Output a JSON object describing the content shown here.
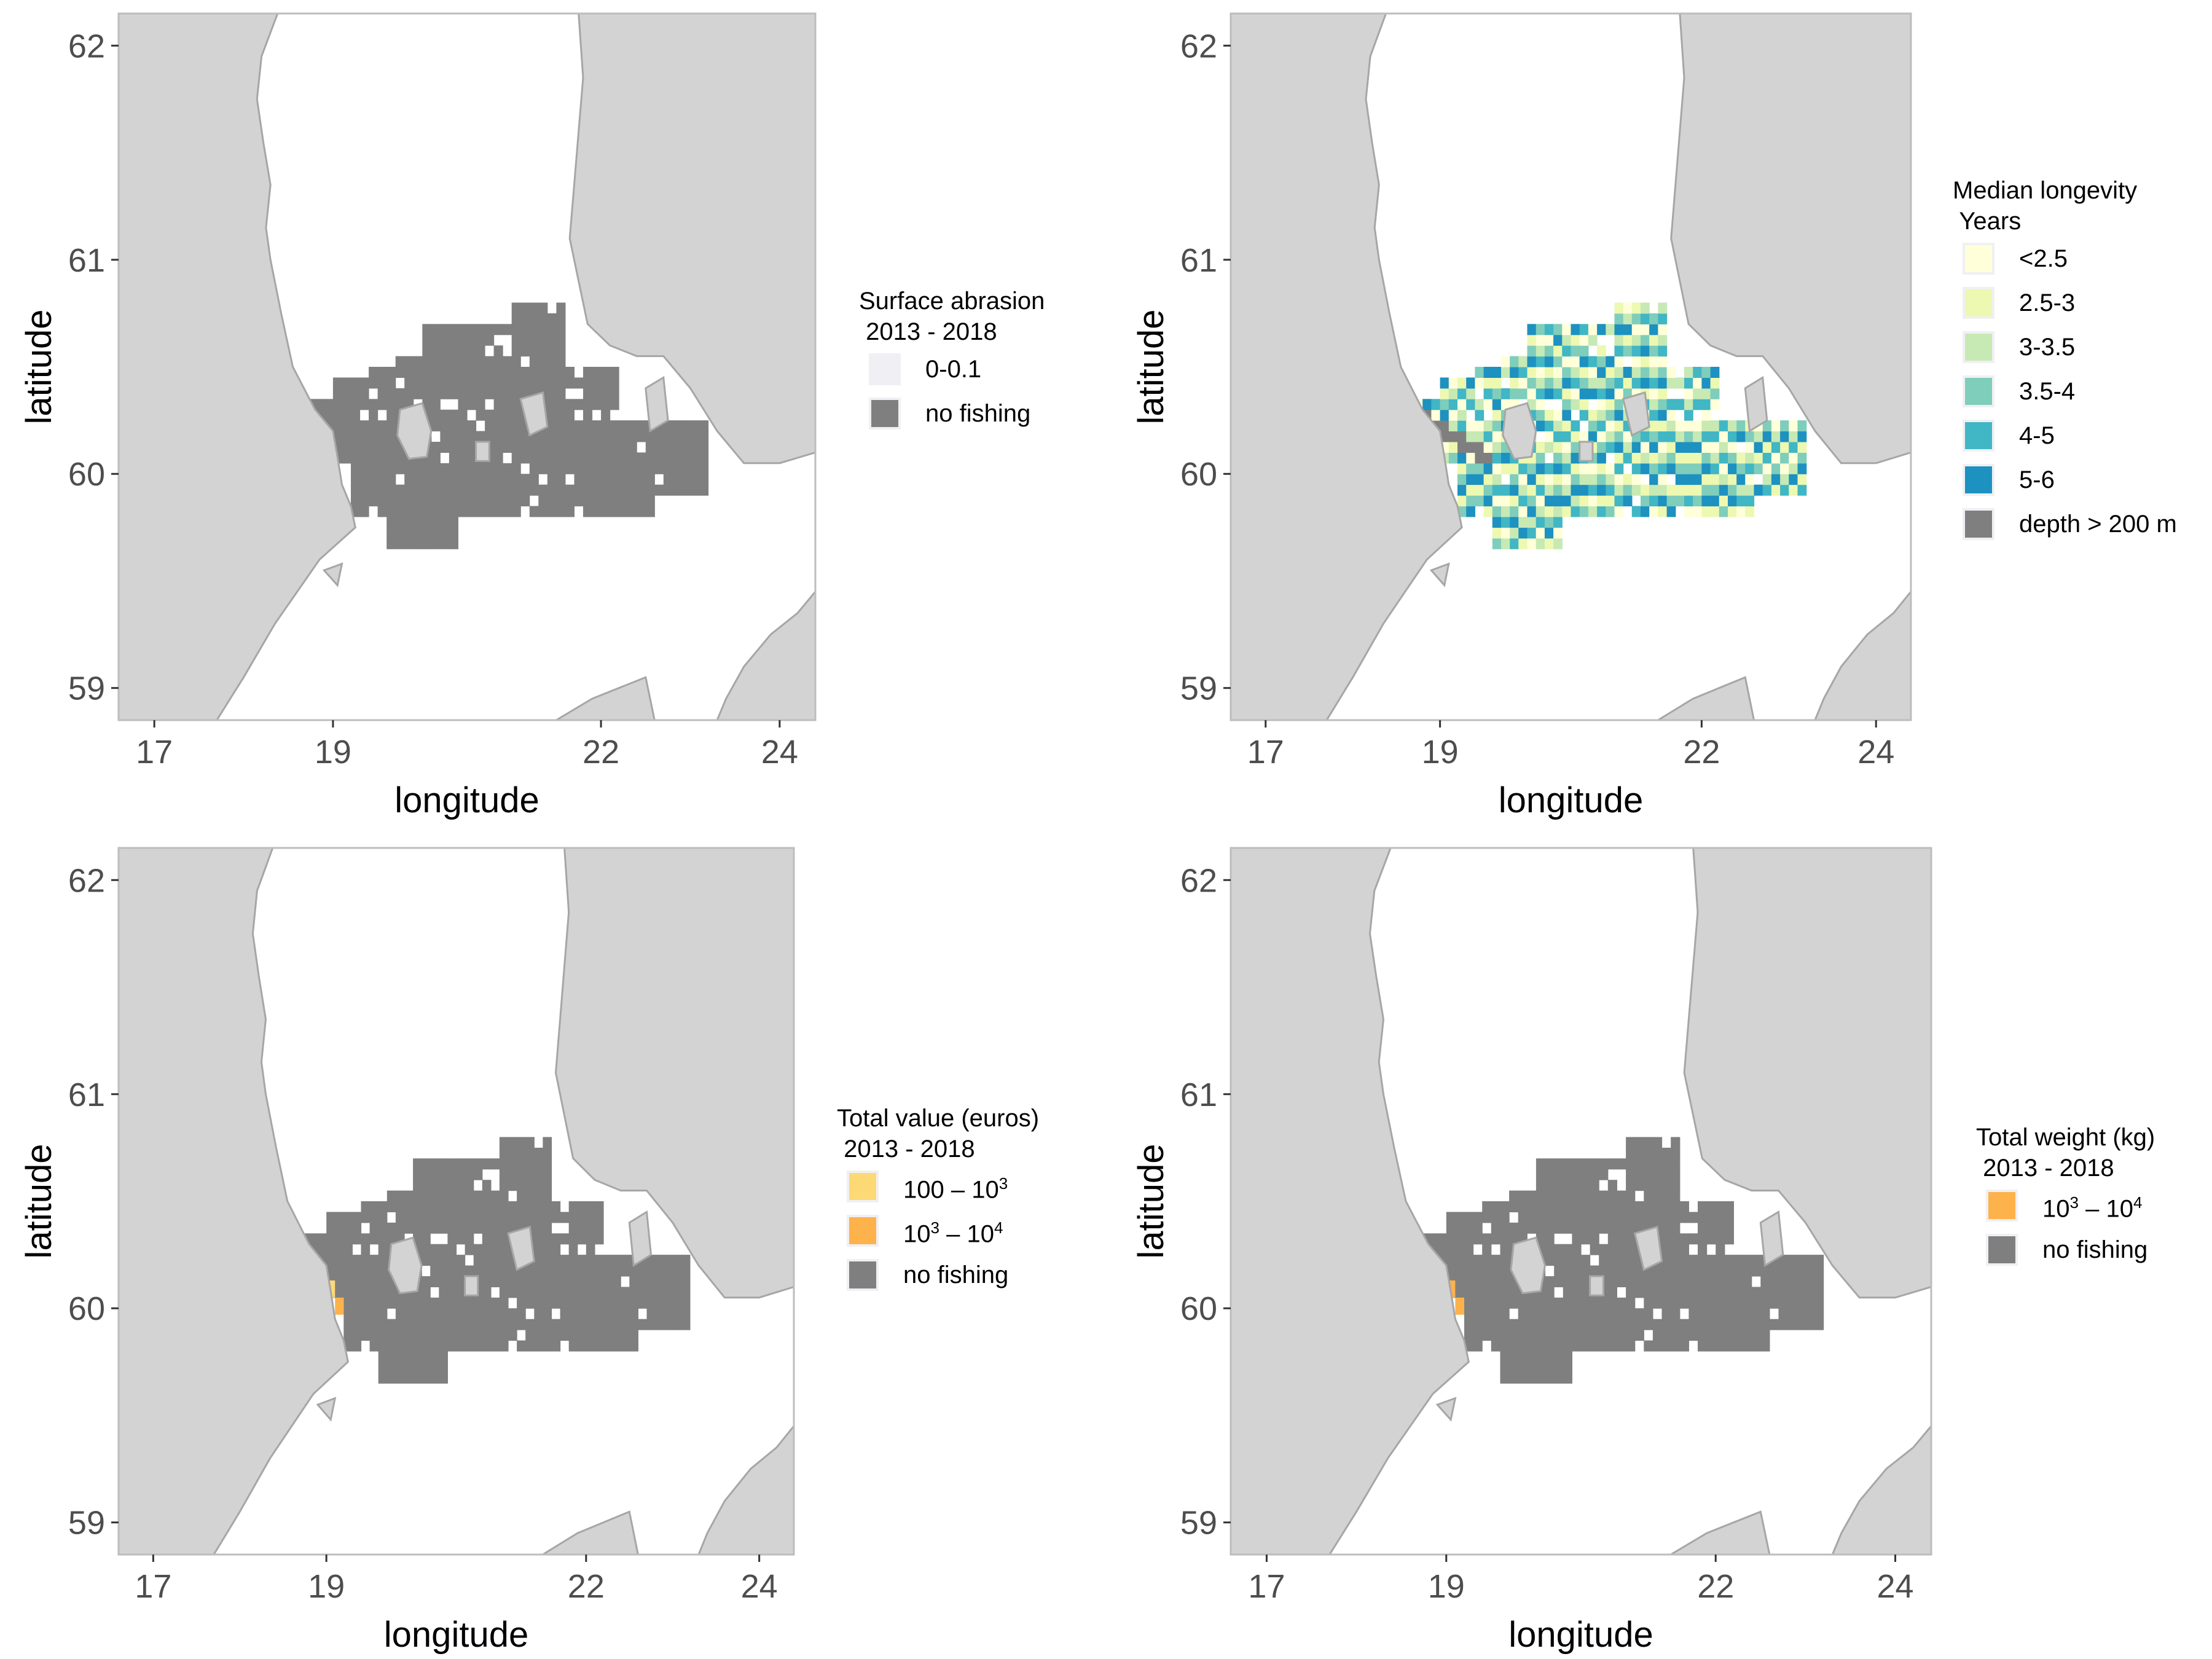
{
  "chart_data": [
    {
      "type": "heatmap",
      "subject": "map",
      "xlabel": "longitude",
      "ylabel": "latitude",
      "xlim": [
        16.6,
        24.4
      ],
      "ylim": [
        58.85,
        62.15
      ],
      "xticks": [
        "17",
        "19",
        "22",
        "24"
      ],
      "yticks": [
        "59",
        "60",
        "61",
        "62"
      ],
      "legend": {
        "title": "Surface abrasion\n 2013 - 2018",
        "entries": [
          {
            "label": "0-0.1",
            "color": "#f0f0f4"
          },
          {
            "label": "no fishing",
            "color": "#7f7f7f"
          }
        ]
      },
      "fill": "no fishing"
    },
    {
      "type": "heatmap",
      "subject": "map",
      "xlabel": "longitude",
      "ylabel": "latitude",
      "xlim": [
        16.6,
        24.4
      ],
      "ylim": [
        58.85,
        62.15
      ],
      "xticks": [
        "17",
        "19",
        "22",
        "24"
      ],
      "yticks": [
        "59",
        "60",
        "61",
        "62"
      ],
      "legend": {
        "title": "Median longevity\n Years",
        "entries": [
          {
            "label": "<2.5",
            "color": "#ffffd9"
          },
          {
            "label": "2.5-3",
            "color": "#edf8b1"
          },
          {
            "label": "3-3.5",
            "color": "#c7e9b4"
          },
          {
            "label": "3.5-4",
            "color": "#7fcdbb"
          },
          {
            "label": "4-5",
            "color": "#41b6c4"
          },
          {
            "label": "5-6",
            "color": "#1d91c0"
          },
          {
            "label": "depth > 200 m",
            "color": "#7f7f7f"
          }
        ]
      },
      "fill": "longevity"
    },
    {
      "type": "heatmap",
      "subject": "map",
      "xlabel": "longitude",
      "ylabel": "latitude",
      "xlim": [
        16.6,
        24.4
      ],
      "ylim": [
        58.85,
        62.15
      ],
      "xticks": [
        "17",
        "19",
        "22",
        "24"
      ],
      "yticks": [
        "59",
        "60",
        "61",
        "62"
      ],
      "legend": {
        "title": "Total value (euros)\n 2013 - 2018",
        "entries": [
          {
            "label_base": "100",
            "label_sep": " – ",
            "label_base2": "10",
            "label_sup2": "3",
            "color": "#fdd976"
          },
          {
            "label_base": "10",
            "label_sup": "3",
            "label_sep": " – ",
            "label_base2": "10",
            "label_sup2": "4",
            "color": "#feb24c"
          },
          {
            "label": "no fishing",
            "color": "#7f7f7f"
          }
        ]
      },
      "fill": "no fishing",
      "highlight": [
        {
          "lon": 19.0,
          "lat": 60.05,
          "class": "100 – 10^3"
        },
        {
          "lon": 19.1,
          "lat": 59.97,
          "class": "10^3 – 10^4"
        }
      ]
    },
    {
      "type": "heatmap",
      "subject": "map",
      "xlabel": "longitude",
      "ylabel": "latitude",
      "xlim": [
        16.6,
        24.4
      ],
      "ylim": [
        58.85,
        62.15
      ],
      "xticks": [
        "17",
        "19",
        "22",
        "24"
      ],
      "yticks": [
        "59",
        "60",
        "61",
        "62"
      ],
      "legend": {
        "title": "Total weight (kg)\n 2013 - 2018",
        "entries": [
          {
            "label_base": "10",
            "label_sup": "3",
            "label_sep": " – ",
            "label_base2": "10",
            "label_sup2": "4",
            "color": "#feb24c"
          },
          {
            "label": "no fishing",
            "color": "#7f7f7f"
          }
        ]
      },
      "fill": "no fishing",
      "highlight": [
        {
          "lon": 19.0,
          "lat": 60.05,
          "class": "10^3 – 10^4"
        },
        {
          "lon": 19.1,
          "lat": 59.97,
          "class": "10^3 – 10^4"
        }
      ]
    }
  ],
  "colors": {
    "land": "#d3d3d3",
    "land_edge": "#a6a6a6",
    "sea": "#ffffff",
    "panel_border": "#bdbdbd",
    "tick_text": "#4d4d4d",
    "axis_title": "#000000",
    "no_fishing": "#7f7f7f"
  }
}
